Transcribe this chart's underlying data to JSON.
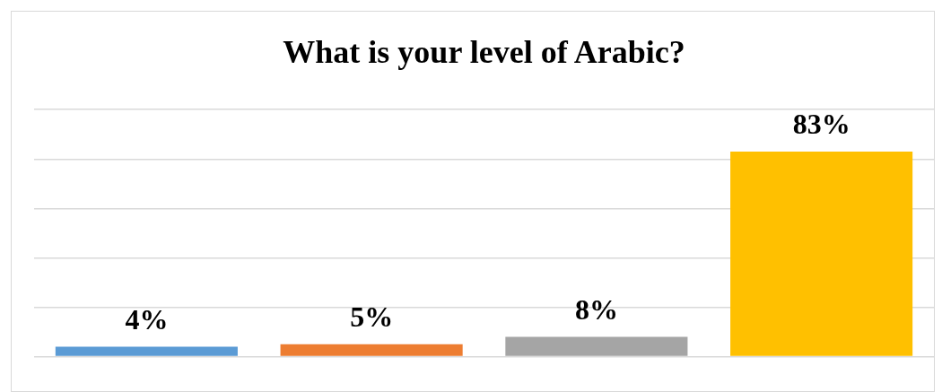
{
  "chart_data": {
    "type": "bar",
    "title": "What is your level of Arabic?",
    "categories": [
      null,
      null,
      null,
      null
    ],
    "values": [
      4,
      5,
      8,
      83
    ],
    "colors": [
      "#5b9bd5",
      "#ed7d31",
      "#a5a5a5",
      "#ffc000"
    ],
    "value_labels": [
      "4%",
      "5%",
      "8%",
      "83%"
    ],
    "grid": "y",
    "legend": false
  }
}
